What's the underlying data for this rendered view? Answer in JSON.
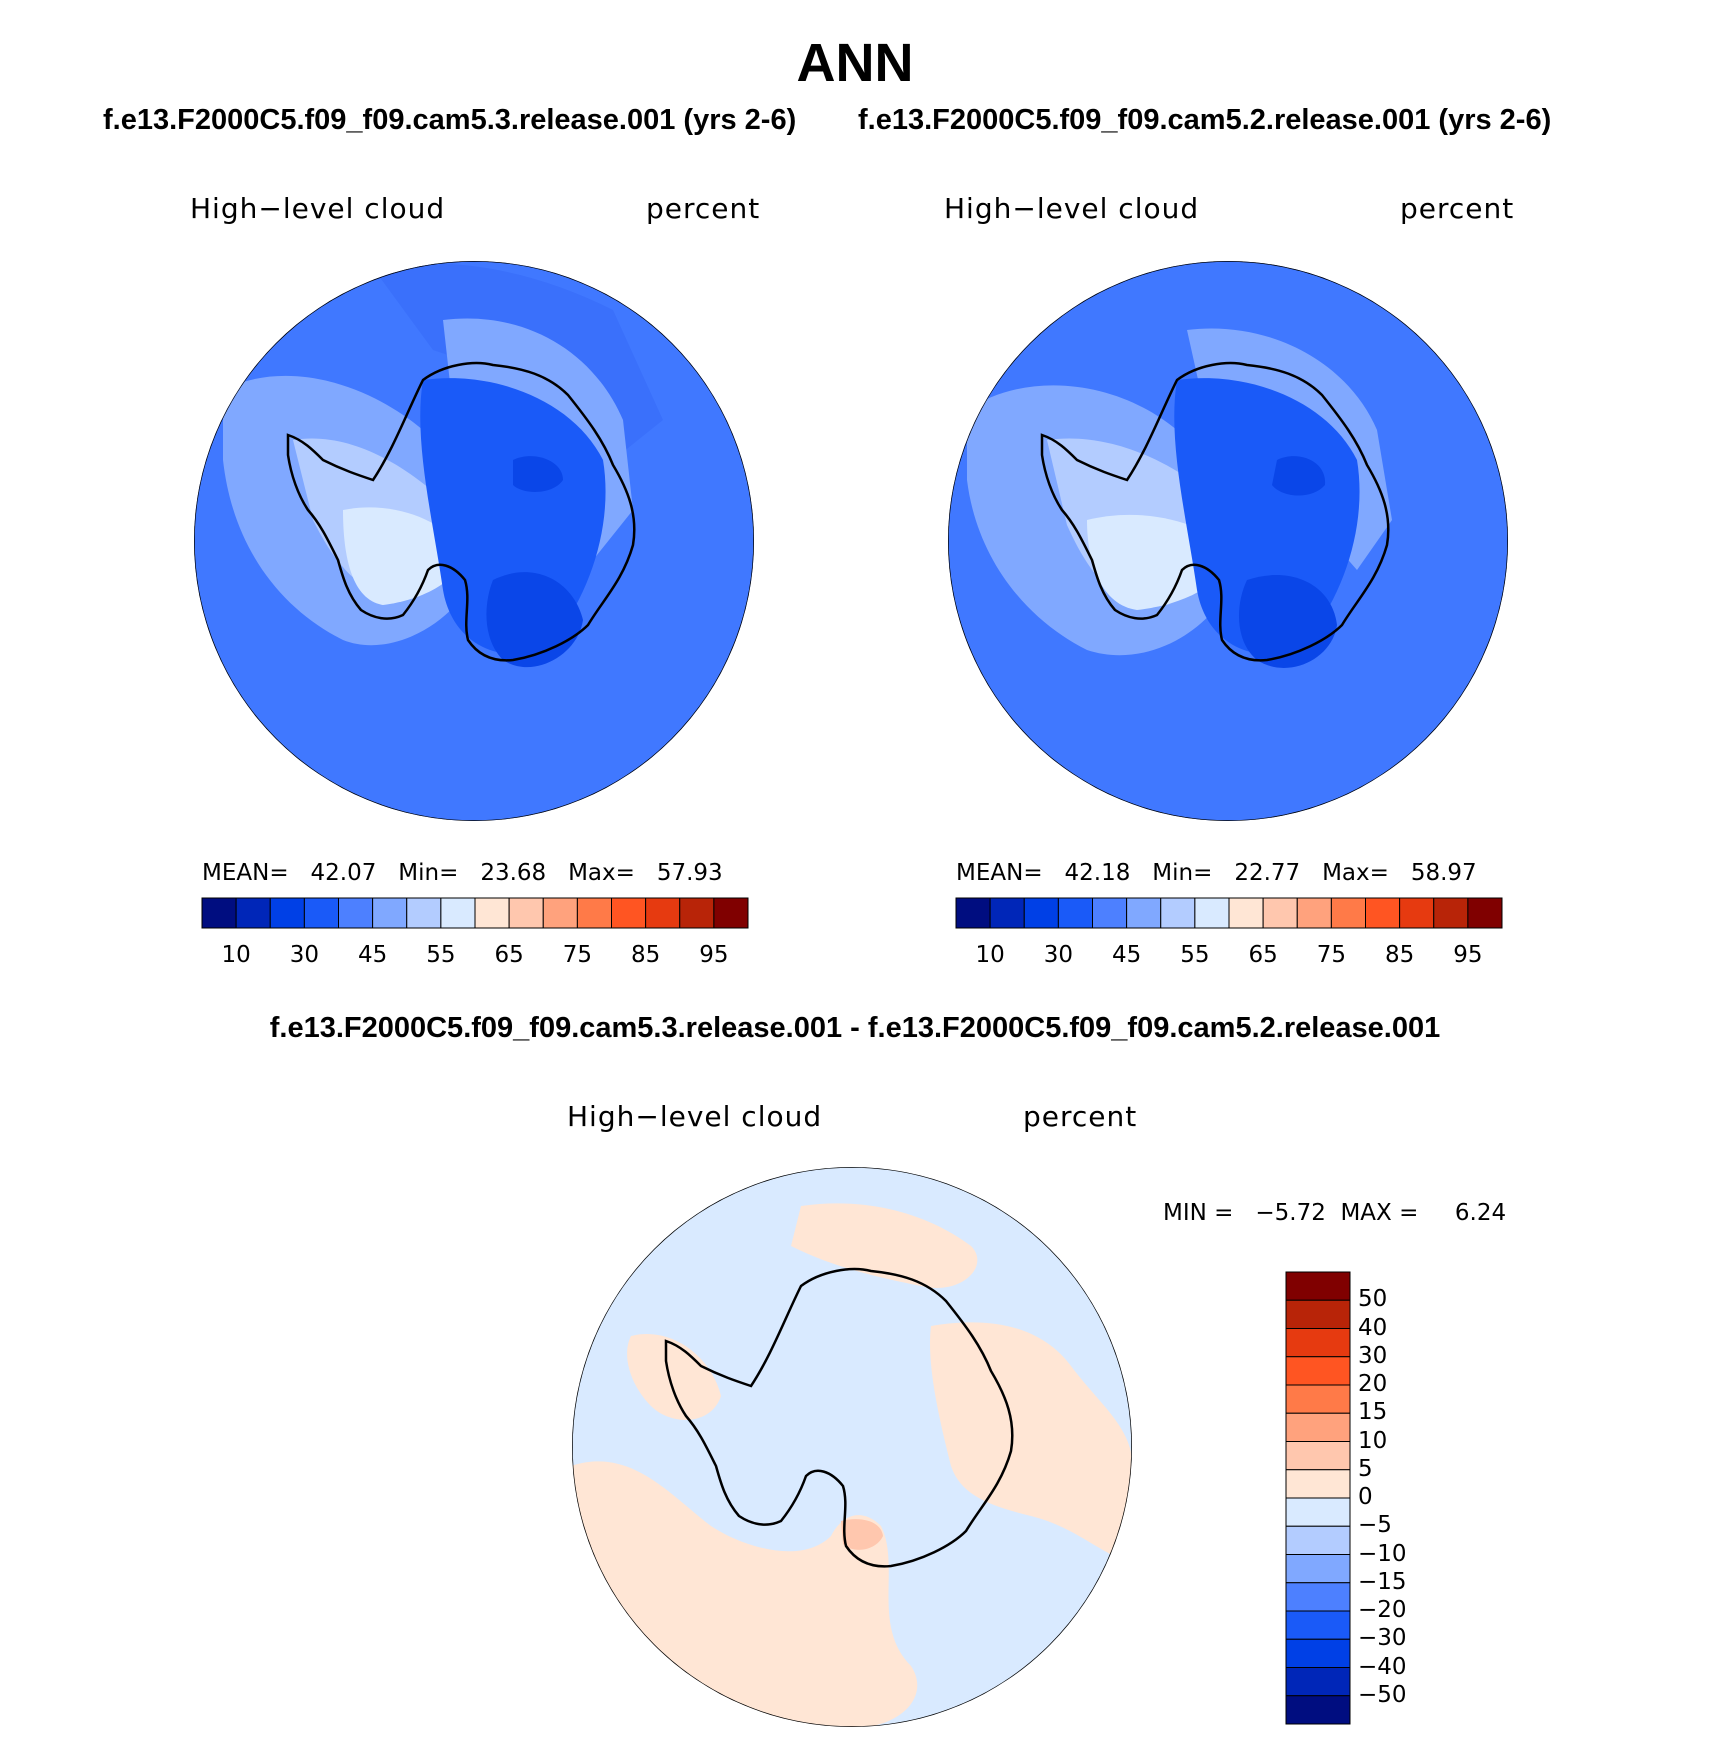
{
  "figure": {
    "season": "ANN",
    "test_case_title": "f.e13.F2000C5.f09_f09.cam5.3.release.001 (yrs 2-6)",
    "control_case_title": "f.e13.F2000C5.f09_f09.cam5.2.release.001 (yrs 2-6)",
    "diff_title": "f.e13.F2000C5.f09_f09.cam5.3.release.001 - f.e13.F2000C5.f09_f09.cam5.2.release.001"
  },
  "panels": [
    {
      "variable": "High−level cloud",
      "units": "percent",
      "stats": "MEAN=   42.07   Min=   23.68   Max=   57.93"
    },
    {
      "variable": "High−level cloud",
      "units": "percent",
      "stats": "MEAN=   42.18   Min=   22.77   Max=   58.97"
    },
    {
      "variable": "High−level cloud",
      "units": "percent",
      "stats": "MIN =   −5.72  MAX =     6.24"
    }
  ],
  "colorbar_main": {
    "colors": [
      "#000d80",
      "#0026b8",
      "#0040e6",
      "#1a5af8",
      "#4d80ff",
      "#80a8ff",
      "#b3ccff",
      "#d9eaff",
      "#ffe6d5",
      "#ffc7ae",
      "#ffa27d",
      "#ff7a48",
      "#ff5522",
      "#e63a10",
      "#b82408",
      "#800000"
    ],
    "tick_labels": [
      "10",
      "30",
      "45",
      "55",
      "65",
      "75",
      "85",
      "95"
    ]
  },
  "colorbar_diff": {
    "colors": [
      "#000d80",
      "#0026b8",
      "#0040e6",
      "#1a5af8",
      "#4d80ff",
      "#80a8ff",
      "#b3ccff",
      "#d9eaff",
      "#ffe6d5",
      "#ffc7ae",
      "#ffa27d",
      "#ff7a48",
      "#ff5522",
      "#e63a10",
      "#b82408",
      "#800000"
    ],
    "tick_labels": [
      "50",
      "40",
      "30",
      "20",
      "15",
      "10",
      "5",
      "0",
      "−5",
      "−10",
      "−15",
      "−20",
      "−30",
      "−40",
      "−50"
    ]
  },
  "map_colors": {
    "ocean_main_1": "#4078ff",
    "ocean_main_2": "#4078ff",
    "mid": "#80a8ff",
    "light": "#b3ccff",
    "lightest": "#d9eaff",
    "dark": "#1a5af8",
    "darker": "#0a46e8",
    "diff_neg": "#d9eaff",
    "diff_pos": "#ffe6d5",
    "diff_pos2": "#ffc7ae"
  }
}
